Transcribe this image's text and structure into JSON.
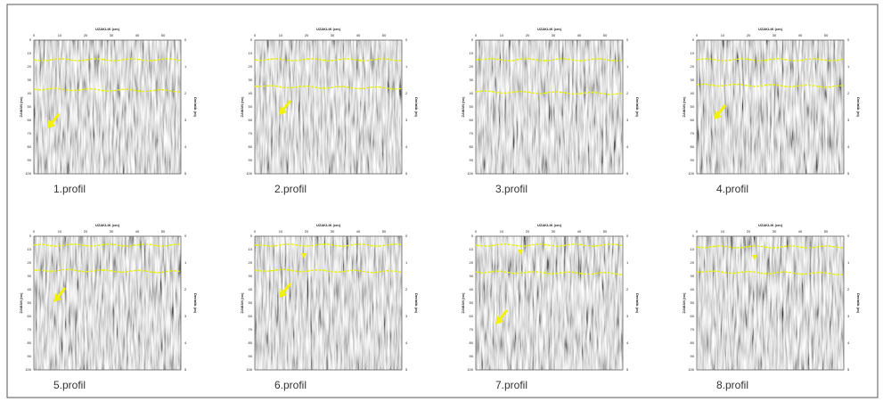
{
  "axes": {
    "top_title": "UZAKLIK (cm)",
    "top_ticks": [
      "0",
      "10",
      "20",
      "30",
      "40",
      "50"
    ],
    "left_title": "ZAMAN (ns)",
    "left_ticks": [
      "0",
      "10",
      "20",
      "30",
      "40",
      "50",
      "60",
      "70",
      "80",
      "90",
      "100"
    ],
    "right_title": "Derinlik (m)",
    "right_ticks": [
      "0",
      "1",
      "2",
      "3",
      "4",
      "5"
    ]
  },
  "panels": [
    {
      "caption": "1.profil"
    },
    {
      "caption": "2.profil"
    },
    {
      "caption": "3.profil"
    },
    {
      "caption": "4.profil"
    },
    {
      "caption": "5.profil"
    },
    {
      "caption": "6.profil"
    },
    {
      "caption": "7.profil"
    },
    {
      "caption": "8.profil"
    }
  ]
}
